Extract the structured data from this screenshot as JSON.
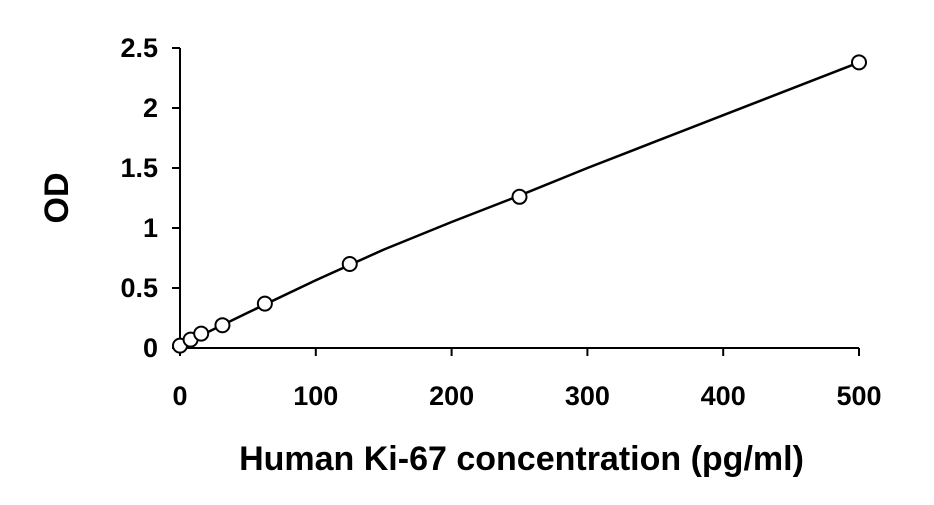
{
  "chart_data": {
    "type": "scatter",
    "title": "",
    "xlabel": "Human Ki-67 concentration (pg/ml)",
    "ylabel": "OD",
    "xlim": [
      0,
      500
    ],
    "ylim": [
      0,
      2.5
    ],
    "x_ticks": [
      "0",
      "100",
      "200",
      "300",
      "400",
      "500"
    ],
    "y_ticks": [
      "0",
      "0.5",
      "1",
      "1.5",
      "2",
      "2.5"
    ],
    "grid": false,
    "legend": "none",
    "series": [
      {
        "marker": "open-circle",
        "x": [
          0,
          7.8,
          15.6,
          31.25,
          62.5,
          125,
          250,
          500
        ],
        "y": [
          0.02,
          0.07,
          0.12,
          0.19,
          0.37,
          0.7,
          1.26,
          2.38
        ]
      }
    ],
    "fit_curve": {
      "x": [
        0,
        50,
        100,
        150,
        200,
        250,
        300,
        350,
        400,
        450,
        500
      ],
      "y": [
        0.02,
        0.295,
        0.565,
        0.82,
        1.05,
        1.27,
        1.5,
        1.72,
        1.94,
        2.16,
        2.38
      ]
    },
    "colors": {
      "axis": "#000000",
      "marker": "#000000",
      "curve": "#000000",
      "background": "#ffffff"
    }
  }
}
